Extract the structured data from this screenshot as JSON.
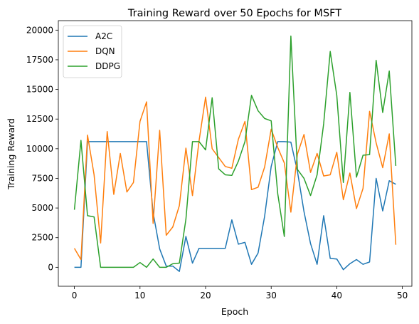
{
  "chart_data": {
    "type": "line",
    "title": "Training Reward over 50 Epochs for MSFT",
    "xlabel": "Epoch",
    "ylabel": "Training Reward",
    "xlim": [
      -2.45,
      51.45
    ],
    "ylim": [
      -1600,
      20800
    ],
    "xticks": [
      0,
      10,
      20,
      30,
      40,
      50
    ],
    "yticks": [
      0,
      2500,
      5000,
      7500,
      10000,
      12500,
      15000,
      17500,
      20000
    ],
    "grid": false,
    "legend_position": "top-left",
    "x": [
      0,
      1,
      2,
      3,
      4,
      5,
      6,
      7,
      8,
      9,
      10,
      11,
      12,
      13,
      14,
      15,
      16,
      17,
      18,
      19,
      20,
      21,
      22,
      23,
      24,
      25,
      26,
      27,
      28,
      29,
      30,
      31,
      32,
      33,
      34,
      35,
      36,
      37,
      38,
      39,
      40,
      41,
      42,
      43,
      44,
      45,
      46,
      47,
      48,
      49
    ],
    "series": [
      {
        "name": "A2C",
        "color": "#1f77b4",
        "values": [
          0,
          0,
          10600,
          10600,
          10600,
          10600,
          10600,
          10600,
          10600,
          10600,
          10600,
          10600,
          4600,
          1550,
          100,
          100,
          -350,
          2600,
          350,
          1600,
          1600,
          1600,
          1600,
          1600,
          4000,
          1950,
          2100,
          250,
          1200,
          4300,
          8500,
          10600,
          10600,
          10550,
          8100,
          4700,
          2000,
          250,
          4350,
          750,
          700,
          -200,
          300,
          650,
          250,
          450,
          7500,
          4750,
          7300,
          7000
        ]
      },
      {
        "name": "DQN",
        "color": "#ff7f0e",
        "values": [
          1600,
          650,
          11150,
          7800,
          2050,
          11450,
          6150,
          9600,
          6350,
          7150,
          12300,
          13950,
          3700,
          11550,
          2700,
          3400,
          5200,
          10050,
          6050,
          10650,
          14350,
          10000,
          9250,
          8500,
          8350,
          10800,
          12300,
          6550,
          6750,
          8450,
          11650,
          10100,
          8800,
          4650,
          9550,
          11200,
          8000,
          9600,
          7700,
          7800,
          9700,
          5700,
          7950,
          4950,
          6650,
          13150,
          10500,
          8400,
          11250,
          1900
        ]
      },
      {
        "name": "DDPG",
        "color": "#2ca02c",
        "values": [
          4850,
          10700,
          4350,
          4250,
          0,
          0,
          0,
          0,
          0,
          0,
          400,
          0,
          700,
          0,
          0,
          300,
          350,
          4050,
          10600,
          10600,
          9900,
          14300,
          8300,
          7800,
          7750,
          8950,
          10600,
          14500,
          13200,
          12550,
          12350,
          6200,
          2600,
          19500,
          8250,
          7500,
          6050,
          7800,
          12100,
          18200,
          14500,
          7150,
          14750,
          7600,
          9450,
          9500,
          17450,
          13050,
          16550,
          8550
        ]
      }
    ]
  }
}
